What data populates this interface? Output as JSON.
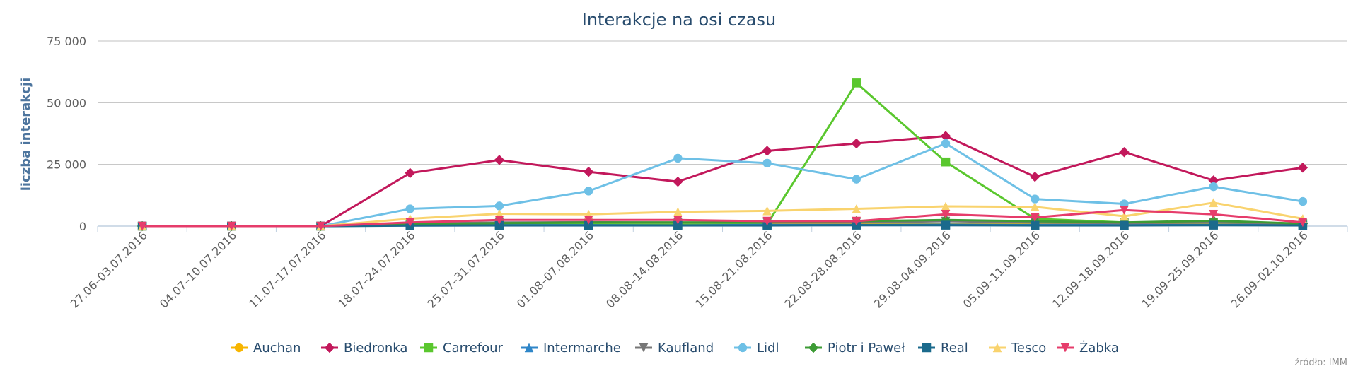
{
  "chart_data": {
    "type": "line",
    "title": "Interakcje na osi czasu",
    "xlabel": "",
    "ylabel": "liczba interakcji",
    "ylim": [
      0,
      75000
    ],
    "yticks": [
      0,
      25000,
      50000,
      75000
    ],
    "ytick_labels": [
      "0",
      "25 000",
      "50 000",
      "75 000"
    ],
    "grid": true,
    "legend_position": "bottom",
    "credits": "źródło: IMM",
    "categories": [
      "27.06–03.07.2016",
      "04.07–10.07.2016",
      "11.07–17.07.2016",
      "18.07–24.07.2016",
      "25.07–31.07.2016",
      "01.08–07.08.2016",
      "08.08–14.08.2016",
      "15.08–21.08.2016",
      "22.08–28.08.2016",
      "29.08–04.09.2016",
      "05.09–11.09.2016",
      "12.09–18.09.2016",
      "19.09–25.09.2016",
      "26.09–02.10.2016"
    ],
    "series": [
      {
        "name": "Auchan",
        "color": "#f7b500",
        "marker": "circle",
        "values": [
          0,
          0,
          0,
          500,
          800,
          700,
          600,
          700,
          800,
          900,
          700,
          600,
          700,
          500
        ]
      },
      {
        "name": "Biedronka",
        "color": "#c2185b",
        "marker": "diamond",
        "values": [
          0,
          0,
          0,
          21500,
          26800,
          22000,
          18000,
          30500,
          33500,
          36500,
          20000,
          30000,
          18500,
          23700
        ]
      },
      {
        "name": "Carrefour",
        "color": "#5ac72e",
        "marker": "square",
        "values": [
          0,
          0,
          0,
          500,
          600,
          700,
          600,
          800,
          58000,
          26000,
          3000,
          1500,
          1500,
          1000
        ]
      },
      {
        "name": "Intermarche",
        "color": "#2f86c8",
        "marker": "triangle",
        "values": [
          0,
          0,
          0,
          300,
          400,
          400,
          300,
          500,
          500,
          600,
          500,
          400,
          500,
          400
        ]
      },
      {
        "name": "Kaufland",
        "color": "#777777",
        "marker": "triangle-down",
        "values": [
          0,
          0,
          0,
          1000,
          1500,
          1600,
          1500,
          1500,
          1500,
          2000,
          1500,
          1200,
          1500,
          1000
        ]
      },
      {
        "name": "Lidl",
        "color": "#6ec0e6",
        "marker": "circle",
        "values": [
          0,
          0,
          0,
          7000,
          8200,
          14200,
          27500,
          25500,
          19000,
          33500,
          11000,
          9000,
          16000,
          10000
        ]
      },
      {
        "name": "Piotr i Paweł",
        "color": "#3d9b35",
        "marker": "diamond",
        "values": [
          0,
          0,
          0,
          800,
          1200,
          1500,
          1500,
          1500,
          2000,
          2500,
          2000,
          1500,
          2200,
          1000
        ]
      },
      {
        "name": "Real",
        "color": "#1b6a8c",
        "marker": "square",
        "values": [
          0,
          0,
          0,
          200,
          300,
          300,
          300,
          300,
          400,
          400,
          300,
          300,
          400,
          300
        ]
      },
      {
        "name": "Tesco",
        "color": "#f9d36e",
        "marker": "triangle",
        "values": [
          0,
          0,
          0,
          3000,
          5000,
          4800,
          5800,
          6200,
          7000,
          8000,
          7800,
          4000,
          9500,
          3000
        ]
      },
      {
        "name": "Żabka",
        "color": "#e63c6b",
        "marker": "triangle-down",
        "values": [
          0,
          0,
          0,
          1500,
          2500,
          2500,
          2500,
          2000,
          2000,
          4800,
          3500,
          6500,
          4800,
          1500
        ]
      }
    ]
  }
}
